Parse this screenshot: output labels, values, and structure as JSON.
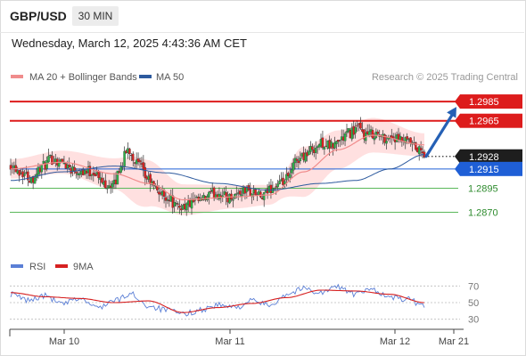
{
  "header": {
    "symbol": "GBP/USD",
    "interval": "30 MIN"
  },
  "timestamp": "Wednesday, March 12, 2025 4:43:36 AM CET",
  "legend": {
    "ma20": "MA 20 + Bollinger Bands",
    "ma50": "MA 50",
    "rsi": "RSI",
    "rsi_ma": "9MA"
  },
  "copyright": "Research © 2025 Trading Central",
  "colors": {
    "bull": "#2db34a",
    "bear": "#e02020",
    "ma20": "#f08c8c",
    "band": "#ffd6d6",
    "ma50": "#2d5a9e",
    "resistance": "#dd1c1c",
    "pivot": "#1f5fd6",
    "support": "#5ab85a",
    "rsi": "#5b7fd6",
    "rsi_ma": "#d62020"
  },
  "chart_data": [
    {
      "type": "candlestick",
      "ylim": [
        1.2852,
        1.2998
      ],
      "x_ticks": [
        "Mar 10",
        "Mar 11",
        "Mar 12",
        "Mar 21"
      ],
      "levels": [
        {
          "value": 1.2985,
          "label": "1.2985",
          "kind": "resistance"
        },
        {
          "value": 1.2965,
          "label": "1.2965",
          "kind": "resistance"
        },
        {
          "value": 1.2928,
          "label": "1.2928",
          "kind": "last"
        },
        {
          "value": 1.2915,
          "label": "1.2915",
          "kind": "pivot"
        },
        {
          "value": 1.2895,
          "label": "1.2895",
          "kind": "support"
        },
        {
          "value": 1.287,
          "label": "1.2870",
          "kind": "support"
        }
      ],
      "last_price": 1.2928,
      "forecast_target": 1.2985,
      "close_anchors": [
        [
          0,
          1.292
        ],
        [
          6,
          1.2912
        ],
        [
          12,
          1.2905
        ],
        [
          18,
          1.2917
        ],
        [
          24,
          1.2925
        ],
        [
          30,
          1.2922
        ],
        [
          36,
          1.2915
        ],
        [
          42,
          1.2913
        ],
        [
          48,
          1.2912
        ],
        [
          54,
          1.29
        ],
        [
          60,
          1.2898
        ],
        [
          63,
          1.2915
        ],
        [
          68,
          1.2935
        ],
        [
          74,
          1.292
        ],
        [
          79,
          1.2905
        ],
        [
          84,
          1.2895
        ],
        [
          88,
          1.2888
        ],
        [
          92,
          1.2885
        ],
        [
          96,
          1.2875
        ],
        [
          101,
          1.2877
        ],
        [
          106,
          1.288
        ],
        [
          111,
          1.2882
        ],
        [
          116,
          1.2888
        ],
        [
          121,
          1.289
        ],
        [
          126,
          1.2885
        ],
        [
          131,
          1.2889
        ],
        [
          136,
          1.2893
        ],
        [
          141,
          1.289
        ],
        [
          146,
          1.2885
        ],
        [
          151,
          1.2895
        ],
        [
          156,
          1.2898
        ],
        [
          161,
          1.2905
        ],
        [
          166,
          1.2925
        ],
        [
          171,
          1.293
        ],
        [
          176,
          1.2937
        ],
        [
          181,
          1.2942
        ],
        [
          186,
          1.2938
        ],
        [
          191,
          1.2945
        ],
        [
          196,
          1.2952
        ],
        [
          201,
          1.2957
        ],
        [
          206,
          1.295
        ],
        [
          211,
          1.2952
        ],
        [
          216,
          1.2947
        ],
        [
          221,
          1.2948
        ],
        [
          226,
          1.2944
        ],
        [
          231,
          1.2942
        ],
        [
          236,
          1.2935
        ],
        [
          240,
          1.293
        ]
      ],
      "ma20_anchors": [
        [
          0,
          1.2915
        ],
        [
          30,
          1.2922
        ],
        [
          60,
          1.291
        ],
        [
          80,
          1.29
        ],
        [
          100,
          1.2883
        ],
        [
          130,
          1.2886
        ],
        [
          150,
          1.2888
        ],
        [
          170,
          1.2912
        ],
        [
          190,
          1.2935
        ],
        [
          210,
          1.295
        ],
        [
          240,
          1.294
        ]
      ],
      "bb_width_anchors": [
        [
          0,
          0.001
        ],
        [
          30,
          0.0012
        ],
        [
          60,
          0.0016
        ],
        [
          75,
          0.0025
        ],
        [
          100,
          0.0016
        ],
        [
          130,
          0.0012
        ],
        [
          155,
          0.001
        ],
        [
          170,
          0.0026
        ],
        [
          190,
          0.002
        ],
        [
          210,
          0.0018
        ],
        [
          240,
          0.0012
        ]
      ],
      "ma50_anchors": [
        [
          0,
          1.2903
        ],
        [
          30,
          1.2912
        ],
        [
          60,
          1.2918
        ],
        [
          90,
          1.2911
        ],
        [
          120,
          1.29
        ],
        [
          150,
          1.2893
        ],
        [
          180,
          1.29
        ],
        [
          200,
          1.2903
        ],
        [
          220,
          1.2915
        ],
        [
          240,
          1.293
        ]
      ]
    },
    {
      "type": "line",
      "name": "RSI",
      "ylim": [
        20,
        80
      ],
      "y_ticks": [
        70,
        50,
        30
      ],
      "rsi_anchors": [
        [
          0,
          60
        ],
        [
          10,
          53
        ],
        [
          20,
          58
        ],
        [
          30,
          48
        ],
        [
          40,
          55
        ],
        [
          50,
          44
        ],
        [
          60,
          52
        ],
        [
          70,
          60
        ],
        [
          80,
          46
        ],
        [
          90,
          41
        ],
        [
          100,
          36
        ],
        [
          110,
          41
        ],
        [
          120,
          47
        ],
        [
          130,
          44
        ],
        [
          140,
          52
        ],
        [
          150,
          47
        ],
        [
          160,
          60
        ],
        [
          170,
          67
        ],
        [
          180,
          62
        ],
        [
          190,
          69
        ],
        [
          200,
          60
        ],
        [
          210,
          66
        ],
        [
          220,
          56
        ],
        [
          230,
          54
        ],
        [
          240,
          46
        ]
      ],
      "ma9_anchors": [
        [
          0,
          62
        ],
        [
          20,
          57
        ],
        [
          40,
          55
        ],
        [
          60,
          50
        ],
        [
          80,
          52
        ],
        [
          100,
          38
        ],
        [
          120,
          44
        ],
        [
          140,
          49
        ],
        [
          160,
          56
        ],
        [
          180,
          65
        ],
        [
          200,
          64
        ],
        [
          220,
          60
        ],
        [
          240,
          50
        ]
      ]
    }
  ]
}
